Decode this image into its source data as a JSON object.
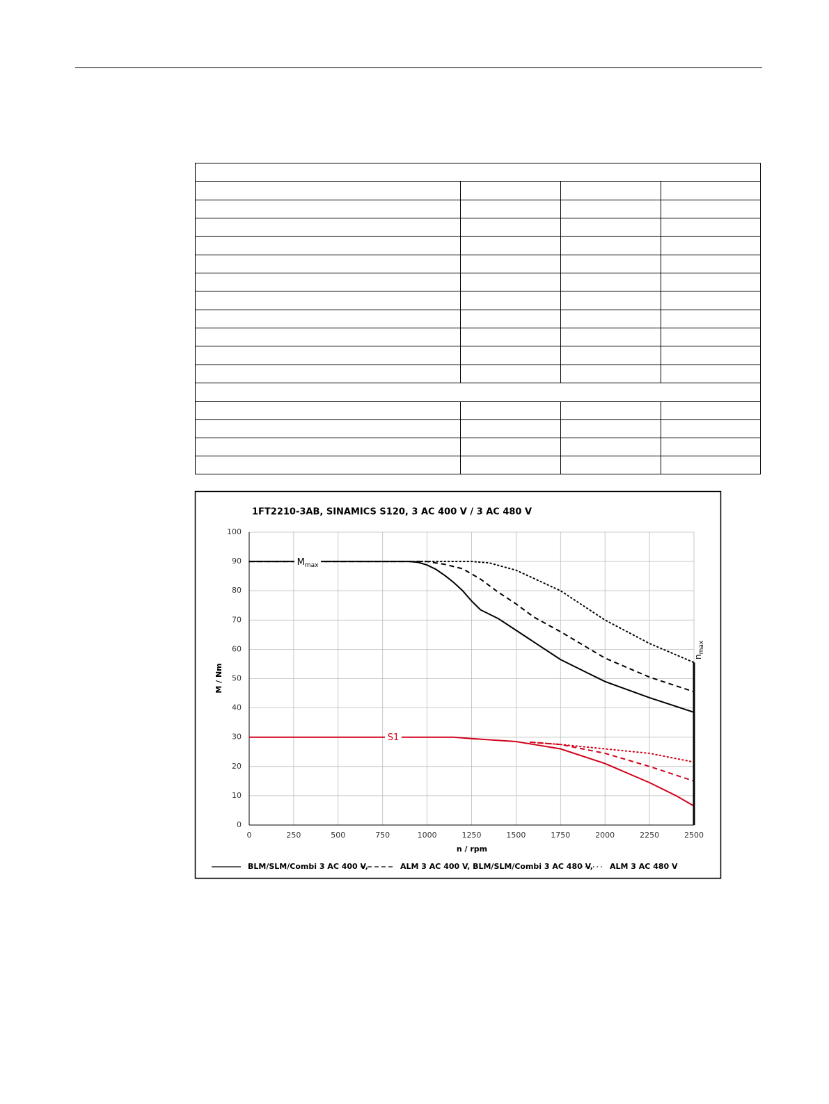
{
  "chart_data": {
    "type": "line",
    "title": "1FT2210-3AB,  SINAMICS S120,  3 AC 400 V / 3 AC 480 V",
    "x_label": "n / rpm",
    "y_label": "M / Nm",
    "xlim": [
      0,
      2500
    ],
    "xticks": [
      0,
      250,
      500,
      750,
      1000,
      1250,
      1500,
      1750,
      2000,
      2250,
      2500
    ],
    "ylim": [
      0,
      100
    ],
    "yticks": [
      0,
      10,
      20,
      30,
      40,
      50,
      60,
      70,
      80,
      90,
      100
    ],
    "grid": true,
    "series": [
      {
        "name": "BLM/SLM/Combi 3 AC 400 V,",
        "color": "#000000",
        "dash": "solid",
        "x": [
          0,
          900,
          950,
          1000,
          1050,
          1100,
          1150,
          1200,
          1250,
          1300,
          1400,
          1500,
          1600,
          1750,
          1900,
          2000,
          2250,
          2500
        ],
        "values": [
          90,
          90,
          89.7,
          88.8,
          87.3,
          85.2,
          82.8,
          80,
          76.5,
          73.5,
          70.5,
          66.5,
          62.5,
          56.5,
          52,
          49,
          43.5,
          38.5
        ]
      },
      {
        "name": "ALM 3 AC 400 V, BLM/SLM/Combi 3 AC 480 V,",
        "color": "#000000",
        "dash": "dashed",
        "x": [
          0,
          1000,
          1100,
          1200,
          1300,
          1400,
          1500,
          1600,
          1750,
          2000,
          2250,
          2500
        ],
        "values": [
          90,
          90,
          89,
          87.5,
          84,
          79.5,
          75.5,
          71,
          66,
          57,
          50.5,
          45.5
        ]
      },
      {
        "name": "ALM 3 AC 480 V",
        "color": "#000000",
        "dash": "dotted",
        "x": [
          0,
          1250,
          1350,
          1500,
          1750,
          2000,
          2250,
          2500
        ],
        "values": [
          90,
          90,
          89.5,
          87,
          80,
          70,
          62,
          55.5
        ]
      },
      {
        "color": "#d0021b",
        "dash": "solid",
        "x": [
          0,
          1150,
          1250,
          1500,
          1600,
          1750,
          2000,
          2250,
          2400,
          2500
        ],
        "values": [
          30,
          30,
          29.5,
          28.5,
          27.5,
          26,
          21,
          14.5,
          10,
          6.5
        ]
      },
      {
        "color": "#d0021b",
        "dash": "dashed",
        "x": [
          1580,
          1750,
          2000,
          2250,
          2500
        ],
        "values": [
          28.3,
          27.5,
          24.5,
          20,
          15
        ]
      },
      {
        "color": "#d0021b",
        "dash": "dotted",
        "x": [
          1580,
          1750,
          2000,
          2250,
          2500
        ],
        "values": [
          28.3,
          27.5,
          26,
          24.5,
          21.5
        ]
      }
    ],
    "annotations": [
      {
        "text": "M",
        "sub": "max"
      },
      {
        "text": "S1"
      },
      {
        "text": "n",
        "sub": "max",
        "x": 2500
      }
    ]
  }
}
